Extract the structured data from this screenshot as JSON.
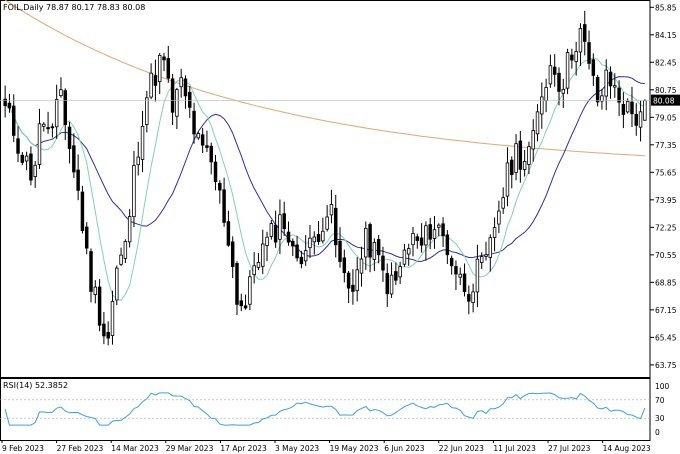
{
  "header": {
    "symbol": "FOIL,Daily",
    "ohlc": "78.87 80.17 78.83 80.08"
  },
  "rsi_header": {
    "label": "RSI(14) 52.3852"
  },
  "colors": {
    "background": "#ffffff",
    "frame": "#000000",
    "candle": "#000000",
    "ma_fast": "#7fd4b3",
    "ma_medium": "#2e2eaa",
    "ma_slow": "#e3a66f",
    "rsi_line": "#3aa0e8",
    "price_tag_bg": "#000000",
    "price_tag_text": "#ffffff"
  },
  "chart_data": [
    {
      "type": "candlestick",
      "title": "FOIL,Daily",
      "y_ticks": [
        "85.85",
        "84.15",
        "82.45",
        "80.75",
        "79.05",
        "77.35",
        "75.65",
        "73.95",
        "72.25",
        "70.55",
        "68.85",
        "67.15",
        "65.45",
        "63.75"
      ],
      "ylim": [
        63.0,
        86.3
      ],
      "last_price": "80.08",
      "x_labels": [
        "9 Feb 2023",
        "27 Feb 2023",
        "14 Mar 2023",
        "29 Mar 2023",
        "17 Apr 2023",
        "3 May 2023",
        "19 May 2023",
        "6 Jun 2023",
        "22 Jun 2023",
        "11 Jul 2023",
        "27 Jul 2023",
        "14 Aug 2023"
      ],
      "anchors": [
        79.5,
        78.2,
        76.5,
        75.5,
        79.2,
        77.5,
        80.8,
        77.0,
        74.0,
        69.5,
        67.5,
        65.0,
        69.5,
        71.0,
        76.0,
        80.0,
        81.5,
        82.8,
        79.5,
        81.0,
        79.2,
        77.0,
        76.5,
        74.5,
        72.0,
        68.0,
        67.2,
        70.5,
        71.0,
        72.0,
        73.0,
        70.5,
        70.8,
        71.0,
        72.5,
        73.5,
        70.0,
        68.5,
        69.5,
        71.5,
        70.5,
        69.0,
        68.5,
        70.5,
        71.5,
        71.0,
        72.5,
        72.0,
        70.5,
        69.0,
        68.5,
        69.5,
        70.0,
        73.0,
        75.0,
        77.0,
        76.5,
        77.5,
        81.0,
        82.5,
        81.0,
        83.0,
        84.5,
        82.0,
        80.0,
        81.5,
        80.5,
        79.5,
        79.05,
        80.08
      ],
      "series": [
        {
          "name": "Fast MA"
        },
        {
          "name": "Medium MA"
        },
        {
          "name": "Slow MA"
        }
      ]
    },
    {
      "type": "line",
      "title": "RSI(14) 52.3852",
      "y_ticks": [
        "100",
        "70",
        "30",
        "0"
      ],
      "ylim": [
        0,
        100
      ],
      "last_value": 52.3852
    }
  ]
}
